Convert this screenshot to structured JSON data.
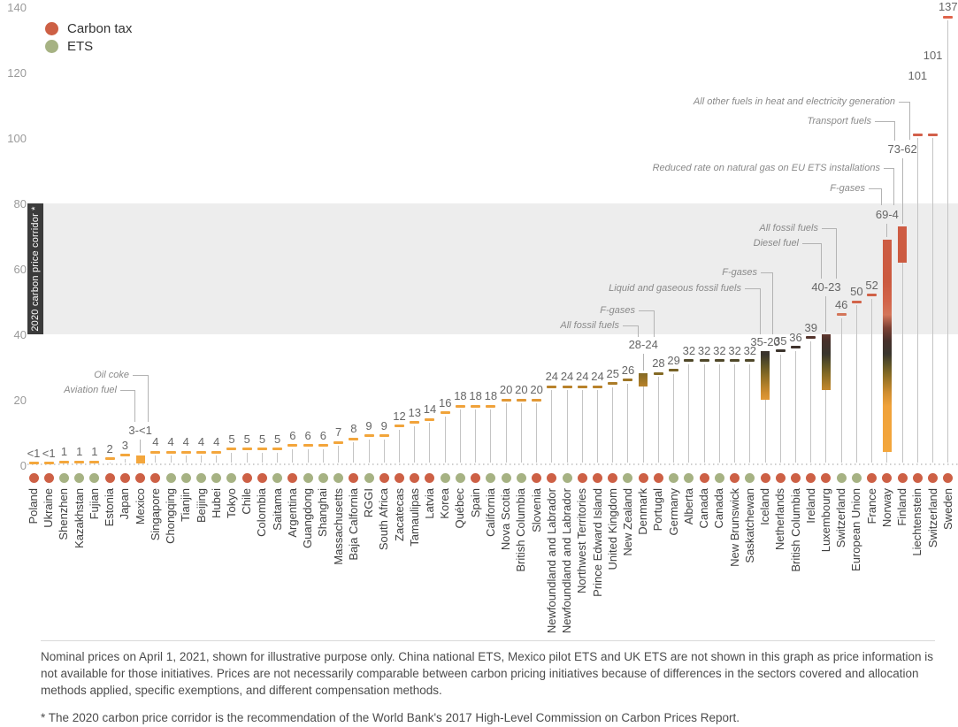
{
  "legend": [
    {
      "label": "Carbon tax",
      "scheme": "tax"
    },
    {
      "label": "ETS",
      "scheme": "ets"
    }
  ],
  "colors": {
    "carbon_tax_dot": "#cd6045",
    "ets_dot": "#a6b283",
    "low_price_amber": "#f4a73c",
    "high_price_terracotta": "#d2604a",
    "corridor_band": "#ededed",
    "corridor_box": "#3b3b3b"
  },
  "corridor_label": "2020 carbon price corridor *",
  "y_axis_ticks": [
    "0",
    "20",
    "40",
    "60",
    "80",
    "100",
    "120",
    "140"
  ],
  "chart_data": {
    "type": "scatter",
    "subtype": "lollipop-with-range-bars",
    "title": "",
    "ylabel": "",
    "xlabel": "",
    "ylim": [
      0,
      140
    ],
    "grid": false,
    "corridor_band_range": [
      40,
      80
    ],
    "points": [
      {
        "name": "Poland",
        "scheme": "tax",
        "price": "<1",
        "high": 0.6,
        "low": null
      },
      {
        "name": "Ukraine",
        "scheme": "tax",
        "price": "<1",
        "high": 0.6,
        "low": null
      },
      {
        "name": "Shenzhen",
        "scheme": "ets",
        "price": "1",
        "high": 1,
        "low": null
      },
      {
        "name": "Kazakhstan",
        "scheme": "ets",
        "price": "1",
        "high": 1,
        "low": null
      },
      {
        "name": "Fujian",
        "scheme": "ets",
        "price": "1",
        "high": 1,
        "low": null
      },
      {
        "name": "Estonia",
        "scheme": "tax",
        "price": "2",
        "high": 2,
        "low": null
      },
      {
        "name": "Japan",
        "scheme": "tax",
        "price": "3",
        "high": 3,
        "low": null
      },
      {
        "name": "Mexico",
        "scheme": "tax",
        "price": "3-<1",
        "high": 3,
        "low": 0.5
      },
      {
        "name": "Singapore",
        "scheme": "tax",
        "price": "4",
        "high": 4,
        "low": null
      },
      {
        "name": "Chongqing",
        "scheme": "ets",
        "price": "4",
        "high": 4,
        "low": null
      },
      {
        "name": "Tianjin",
        "scheme": "ets",
        "price": "4",
        "high": 4,
        "low": null
      },
      {
        "name": "Beijing",
        "scheme": "ets",
        "price": "4",
        "high": 4,
        "low": null
      },
      {
        "name": "Hubei",
        "scheme": "ets",
        "price": "4",
        "high": 4,
        "low": null
      },
      {
        "name": "Tokyo",
        "scheme": "ets",
        "price": "5",
        "high": 5,
        "low": null
      },
      {
        "name": "Chile",
        "scheme": "tax",
        "price": "5",
        "high": 5,
        "low": null
      },
      {
        "name": "Colombia",
        "scheme": "tax",
        "price": "5",
        "high": 5,
        "low": null
      },
      {
        "name": "Saitama",
        "scheme": "ets",
        "price": "5",
        "high": 5,
        "low": null
      },
      {
        "name": "Argentina",
        "scheme": "tax",
        "price": "6",
        "high": 6,
        "low": null
      },
      {
        "name": "Guangdong",
        "scheme": "ets",
        "price": "6",
        "high": 6,
        "low": null
      },
      {
        "name": "Shanghai",
        "scheme": "ets",
        "price": "6",
        "high": 6,
        "low": null
      },
      {
        "name": "Massachusetts",
        "scheme": "ets",
        "price": "7",
        "high": 7,
        "low": null
      },
      {
        "name": "Baja Calfornia",
        "scheme": "tax",
        "price": "8",
        "high": 8,
        "low": null
      },
      {
        "name": "RGGI",
        "scheme": "ets",
        "price": "9",
        "high": 9,
        "low": null
      },
      {
        "name": "South Africa",
        "scheme": "tax",
        "price": "9",
        "high": 9,
        "low": null
      },
      {
        "name": "Zacatecas",
        "scheme": "tax",
        "price": "12",
        "high": 12,
        "low": null
      },
      {
        "name": "Tamaulipas",
        "scheme": "tax",
        "price": "13",
        "high": 13,
        "low": null
      },
      {
        "name": "Latvia",
        "scheme": "tax",
        "price": "14",
        "high": 14,
        "low": null
      },
      {
        "name": "Korea",
        "scheme": "ets",
        "price": "16",
        "high": 16,
        "low": null
      },
      {
        "name": "Québec",
        "scheme": "ets",
        "price": "18",
        "high": 18,
        "low": null
      },
      {
        "name": "Spain",
        "scheme": "tax",
        "price": "18",
        "high": 18,
        "low": null
      },
      {
        "name": "California",
        "scheme": "ets",
        "price": "18",
        "high": 18,
        "low": null
      },
      {
        "name": "Nova Scotia",
        "scheme": "ets",
        "price": "20",
        "high": 20,
        "low": null
      },
      {
        "name": "British Columbia",
        "scheme": "ets",
        "price": "20",
        "high": 20,
        "low": null
      },
      {
        "name": "Slovenia",
        "scheme": "tax",
        "price": "20",
        "high": 20,
        "low": null
      },
      {
        "name": "Newfoundland and Labrador",
        "scheme": "tax",
        "price": "24",
        "high": 24,
        "low": null
      },
      {
        "name": "Newfoundland and Labrador",
        "scheme": "ets",
        "price": "24",
        "high": 24,
        "low": null
      },
      {
        "name": "Northwest Territories",
        "scheme": "tax",
        "price": "24",
        "high": 24,
        "low": null
      },
      {
        "name": "Prince Edward Island",
        "scheme": "tax",
        "price": "24",
        "high": 24,
        "low": null
      },
      {
        "name": "United Kingdom",
        "scheme": "tax",
        "price": "25",
        "high": 25,
        "low": null
      },
      {
        "name": "New Zealand",
        "scheme": "ets",
        "price": "26",
        "high": 26,
        "low": null
      },
      {
        "name": "Denmark",
        "scheme": "tax",
        "price": "28-24",
        "high": 28,
        "low": 24
      },
      {
        "name": "Portugal",
        "scheme": "tax",
        "price": "28",
        "high": 28,
        "low": null
      },
      {
        "name": "Germany",
        "scheme": "ets",
        "price": "29",
        "high": 29,
        "low": null
      },
      {
        "name": "Alberta",
        "scheme": "ets",
        "price": "32",
        "high": 32,
        "low": null
      },
      {
        "name": "Canada",
        "scheme": "tax",
        "price": "32",
        "high": 32,
        "low": null
      },
      {
        "name": "Canada",
        "scheme": "ets",
        "price": "32",
        "high": 32,
        "low": null
      },
      {
        "name": "New Brunswick",
        "scheme": "tax",
        "price": "32",
        "high": 32,
        "low": null
      },
      {
        "name": "Saskatchewan",
        "scheme": "ets",
        "price": "32",
        "high": 32,
        "low": null
      },
      {
        "name": "Iceland",
        "scheme": "tax",
        "price": "35-20",
        "high": 35,
        "low": 20
      },
      {
        "name": "Netherlands",
        "scheme": "tax",
        "price": "35",
        "high": 35,
        "low": null
      },
      {
        "name": "British Columbia",
        "scheme": "tax",
        "price": "36",
        "high": 36,
        "low": null
      },
      {
        "name": "Ireland",
        "scheme": "tax",
        "price": "39",
        "high": 39,
        "low": null
      },
      {
        "name": "Luxembourg",
        "scheme": "tax",
        "price": "40-23",
        "high": 40,
        "low": 23
      },
      {
        "name": "Switzerland",
        "scheme": "ets",
        "price": "46",
        "high": 46,
        "low": null
      },
      {
        "name": "European Union",
        "scheme": "ets",
        "price": "50",
        "high": 50,
        "low": null
      },
      {
        "name": "France",
        "scheme": "tax",
        "price": "52",
        "high": 52,
        "low": null
      },
      {
        "name": "Norway",
        "scheme": "tax",
        "price": "69-4",
        "high": 69,
        "low": 4
      },
      {
        "name": "Finland",
        "scheme": "tax",
        "price": "73-62",
        "high": 73,
        "low": 62
      },
      {
        "name": "Liechtenstein",
        "scheme": "tax",
        "price": "101",
        "high": 101,
        "low": null
      },
      {
        "name": "Switzerland",
        "scheme": "tax",
        "price": "101",
        "high": 101,
        "low": null
      },
      {
        "name": "Sweden",
        "scheme": "tax",
        "price": "137",
        "high": 137,
        "low": null
      }
    ],
    "annotations": [
      {
        "text": "Aviation fuel",
        "target": "Mexico"
      },
      {
        "text": "Oil coke",
        "target": "Mexico"
      },
      {
        "text": "All fossil fuels",
        "target": "Denmark"
      },
      {
        "text": "F-gases",
        "target": "Denmark"
      },
      {
        "text": "Liquid and gaseous fossil fuels",
        "target": "Iceland"
      },
      {
        "text": "F-gases",
        "target": "Iceland"
      },
      {
        "text": "All fossil fuels",
        "target": "Luxembourg"
      },
      {
        "text": "Diesel fuel",
        "target": "Luxembourg"
      },
      {
        "text": "Reduced rate on natural gas on EU ETS installations",
        "target": "Norway"
      },
      {
        "text": "F-gases",
        "target": "Norway"
      },
      {
        "text": "Transport fuels",
        "target": "Finland"
      },
      {
        "text": "All other fuels in heat and electricity generation",
        "target": "Finland"
      }
    ]
  },
  "footnotes": {
    "note1": "Nominal prices on April 1, 2021, shown for illustrative purpose only. China national ETS, Mexico pilot ETS and UK ETS are not shown in this graph as price information is not available for those initiatives. Prices are not necessarily comparable between carbon pricing initiatives because of differences in the sectors covered and allocation methods applied, specific exemptions, and different compensation methods.",
    "note2": "* The 2020 carbon price corridor is the recommendation of the World Bank's 2017 High-Level Commission on Carbon Prices Report."
  }
}
